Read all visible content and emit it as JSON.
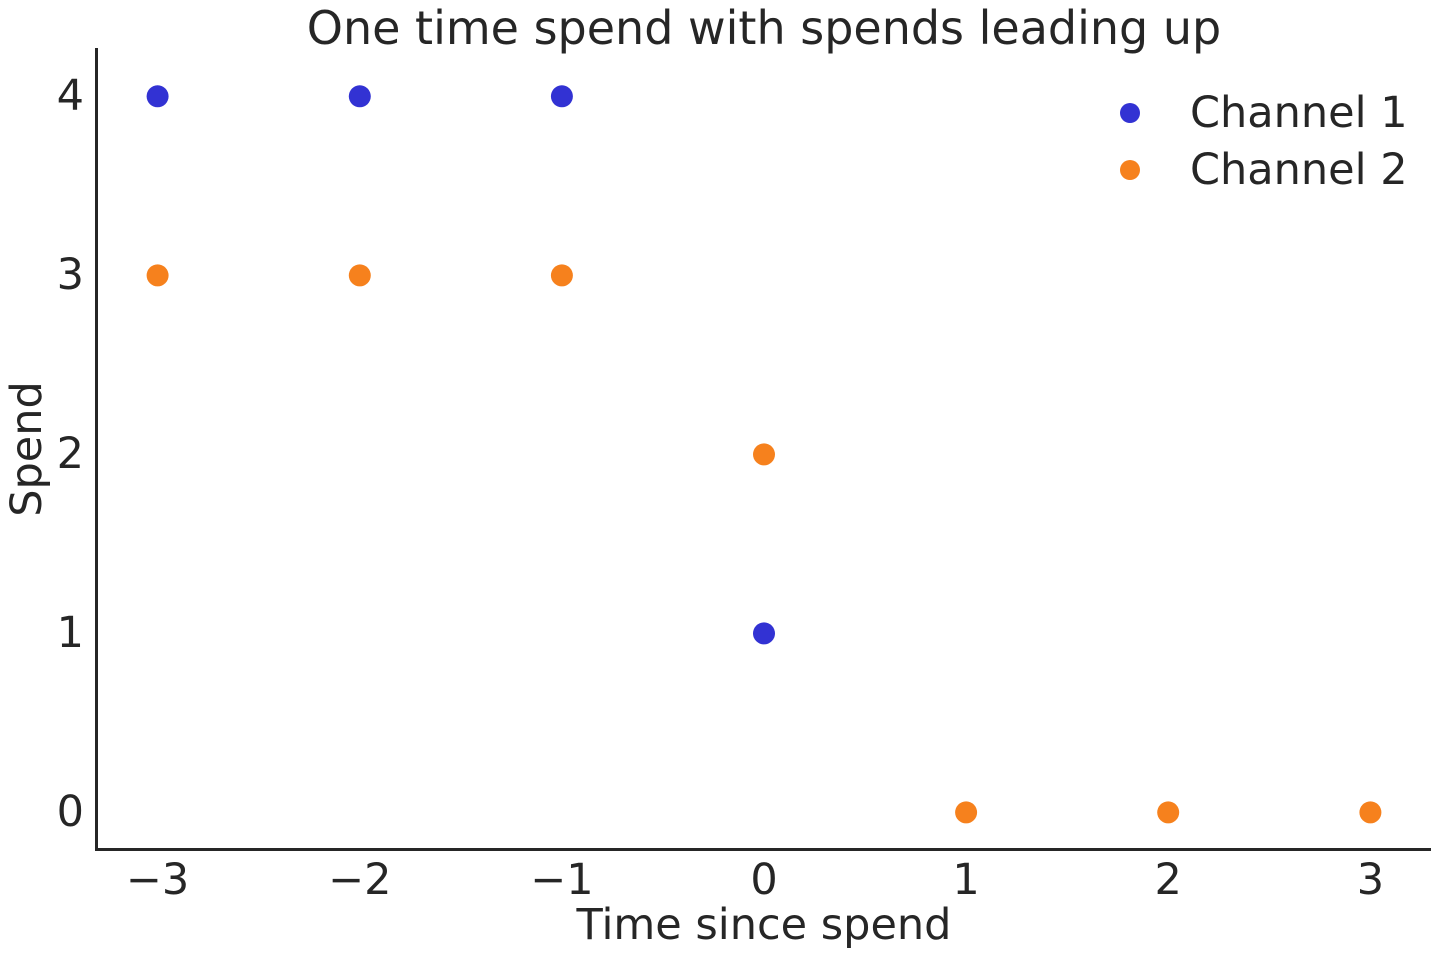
{
  "colors": {
    "background": "#ffffff",
    "text": "#262626",
    "spine": "#262626",
    "channel1": "#3232d3",
    "channel2": "#f6811d"
  },
  "chart_data": {
    "type": "scatter",
    "title": "One time spend with spends leading up",
    "xlabel": "Time since spend",
    "ylabel": "Spend",
    "xlim": [
      -3.3,
      3.3
    ],
    "ylim": [
      -0.21,
      4.27
    ],
    "grid": false,
    "legend_position": "upper right",
    "series": [
      {
        "name": "Channel 1",
        "color": "#3232d3",
        "marker": "circle",
        "points": [
          [
            -3,
            4
          ],
          [
            -2,
            4
          ],
          [
            -1,
            4
          ],
          [
            0,
            1
          ]
        ]
      },
      {
        "name": "Channel 2",
        "color": "#f6811d",
        "marker": "circle",
        "points": [
          [
            -3,
            3
          ],
          [
            -2,
            3
          ],
          [
            -1,
            3
          ],
          [
            0,
            2
          ],
          [
            1,
            0
          ],
          [
            2,
            0
          ],
          [
            3,
            0
          ]
        ]
      }
    ],
    "xticks": [
      {
        "value": -3,
        "label": "−3"
      },
      {
        "value": -2,
        "label": "−2"
      },
      {
        "value": -1,
        "label": "−1"
      },
      {
        "value": 0,
        "label": "0"
      },
      {
        "value": 1,
        "label": "1"
      },
      {
        "value": 2,
        "label": "2"
      },
      {
        "value": 3,
        "label": "3"
      }
    ],
    "yticks": [
      {
        "value": 0,
        "label": "0"
      },
      {
        "value": 1,
        "label": "1"
      },
      {
        "value": 2,
        "label": "2"
      },
      {
        "value": 3,
        "label": "3"
      },
      {
        "value": 4,
        "label": "4"
      }
    ]
  }
}
